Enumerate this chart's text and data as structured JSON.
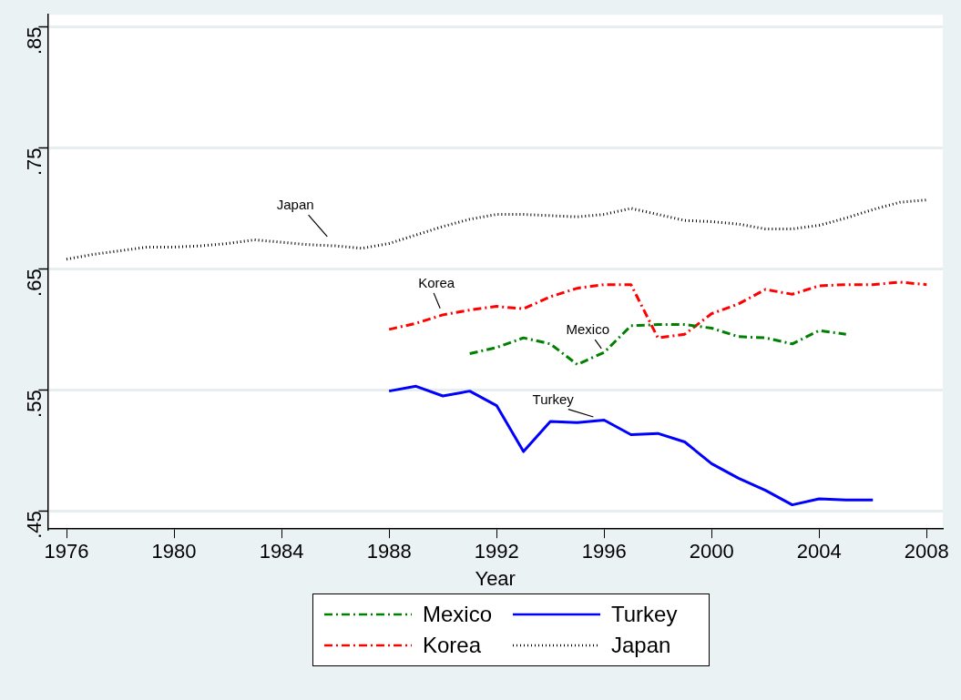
{
  "chart_data": {
    "type": "line",
    "xlabel": "Year",
    "xlim": [
      1975.3,
      2008.6
    ],
    "ylim": [
      0.435,
      0.86
    ],
    "xticks": [
      1976,
      1980,
      1984,
      1988,
      1992,
      1996,
      2000,
      2004,
      2008
    ],
    "yticks": [
      {
        "value": 0.45,
        "label": ".45"
      },
      {
        "value": 0.55,
        "label": ".55"
      },
      {
        "value": 0.65,
        "label": ".65"
      },
      {
        "value": 0.75,
        "label": ".75"
      },
      {
        "value": 0.85,
        "label": ".85"
      }
    ],
    "grid": "y",
    "legend": "bottom",
    "marker": "none",
    "series": [
      {
        "name": "Mexico",
        "color": "#008000",
        "line_style": "dashed",
        "x": [
          1991,
          1992,
          1993,
          1994,
          1995,
          1996,
          1997,
          1998,
          1999,
          2000,
          2001,
          2002,
          2003,
          2004,
          2005
        ],
        "values": [
          0.58,
          0.585,
          0.593,
          0.588,
          0.571,
          0.581,
          0.603,
          0.604,
          0.604,
          0.601,
          0.594,
          0.593,
          0.588,
          0.599,
          0.596
        ]
      },
      {
        "name": "Turkey",
        "color": "#0000ff",
        "line_style": "solid",
        "x": [
          1988,
          1989,
          1990,
          1991,
          1992,
          1993,
          1994,
          1995,
          1996,
          1997,
          1998,
          1999,
          2000,
          2001,
          2002,
          2003,
          2004,
          2005,
          2006
        ],
        "values": [
          0.549,
          0.553,
          0.545,
          0.549,
          0.537,
          0.499,
          0.524,
          0.523,
          0.525,
          0.513,
          0.514,
          0.507,
          0.489,
          0.477,
          0.467,
          0.455,
          0.46,
          0.459,
          0.459
        ]
      },
      {
        "name": "Korea",
        "color": "#ff0000",
        "line_style": "dashed",
        "x": [
          1988,
          1989,
          1990,
          1991,
          1992,
          1993,
          1994,
          1995,
          1996,
          1997,
          1998,
          1999,
          2000,
          2001,
          2002,
          2003,
          2004,
          2005,
          2006,
          2007,
          2008
        ],
        "values": [
          0.6,
          0.605,
          0.612,
          0.616,
          0.619,
          0.617,
          0.627,
          0.634,
          0.637,
          0.637,
          0.593,
          0.596,
          0.613,
          0.621,
          0.633,
          0.629,
          0.636,
          0.637,
          0.637,
          0.639,
          0.637
        ]
      },
      {
        "name": "Japan",
        "color": "#000000",
        "line_style": "dotted",
        "x": [
          1976,
          1977,
          1978,
          1979,
          1980,
          1981,
          1982,
          1983,
          1984,
          1985,
          1986,
          1987,
          1988,
          1989,
          1990,
          1991,
          1992,
          1993,
          1994,
          1995,
          1996,
          1997,
          1998,
          1999,
          2000,
          2001,
          2002,
          2003,
          2004,
          2005,
          2006,
          2007,
          2008
        ],
        "values": [
          0.658,
          0.662,
          0.665,
          0.668,
          0.668,
          0.669,
          0.671,
          0.674,
          0.672,
          0.67,
          0.669,
          0.667,
          0.671,
          0.678,
          0.685,
          0.691,
          0.695,
          0.695,
          0.694,
          0.693,
          0.695,
          0.7,
          0.695,
          0.69,
          0.689,
          0.687,
          0.683,
          0.683,
          0.686,
          0.692,
          0.699,
          0.705,
          0.707
        ]
      }
    ],
    "annotations": [
      {
        "text": "Japan",
        "x": 1986,
        "y": 0.669
      },
      {
        "text": "Korea",
        "x": 1990,
        "y": 0.612
      },
      {
        "text": "Mexico",
        "x": 1996,
        "y": 0.581
      },
      {
        "text": "Turkey",
        "x": 1996,
        "y": 0.525
      }
    ]
  }
}
